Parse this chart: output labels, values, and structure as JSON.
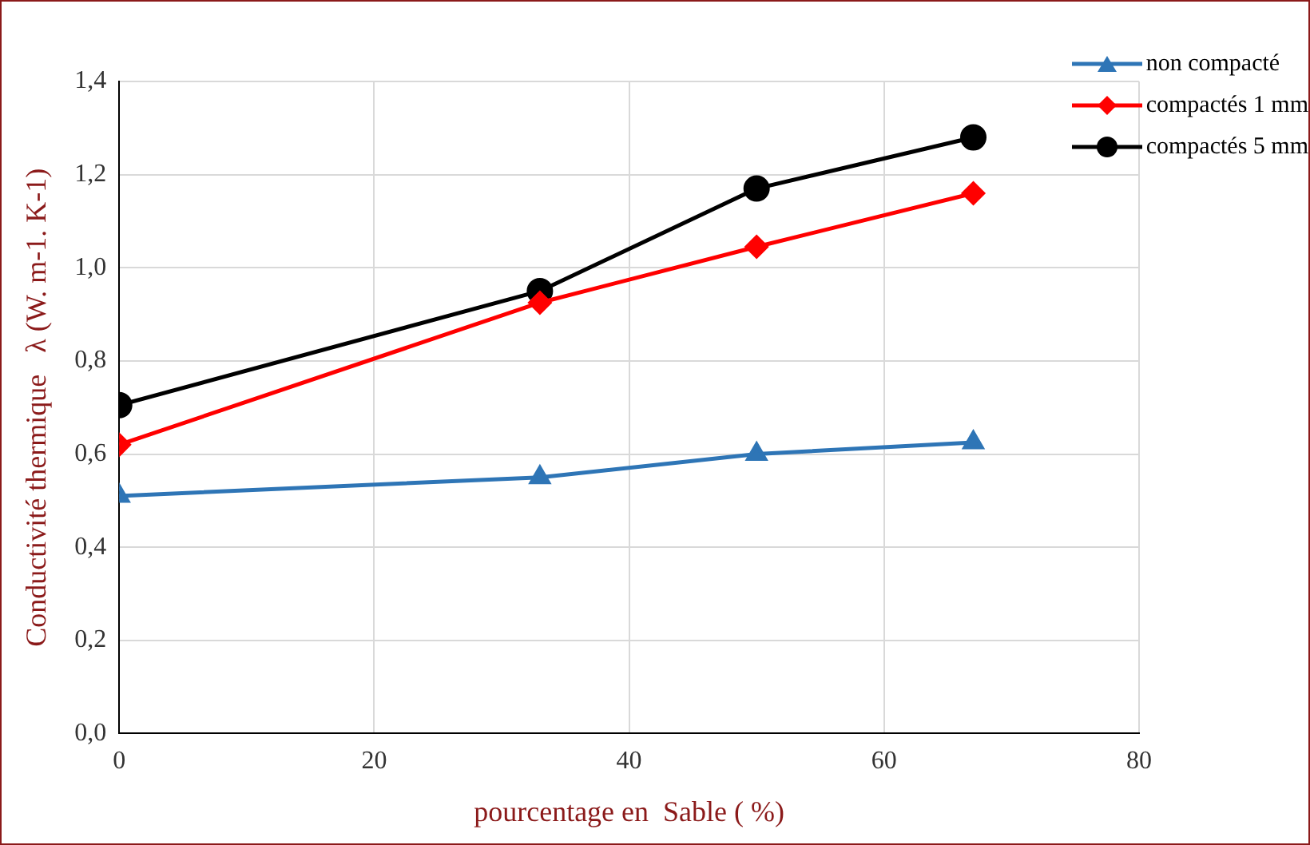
{
  "chart_data": {
    "type": "line",
    "xlabel": "pourcentage en  Sable ( %)",
    "ylabel": "Conductivité thermique   λ (W. m-1. K-1)",
    "x": [
      0,
      33,
      50,
      67
    ],
    "series": [
      {
        "name": "non compacté",
        "color": "#2e75b6",
        "marker": "triangle",
        "values": [
          0.51,
          0.55,
          0.6,
          0.625
        ]
      },
      {
        "name": "compactés 1 mm",
        "color": "#ff0000",
        "marker": "diamond",
        "values": [
          0.62,
          0.925,
          1.045,
          1.16
        ]
      },
      {
        "name": "compactés 5 mm",
        "color": "#000000",
        "marker": "circle",
        "values": [
          0.705,
          0.95,
          1.17,
          1.28
        ]
      }
    ],
    "xlim": [
      0,
      80
    ],
    "xticks": [
      0,
      20,
      40,
      60,
      80
    ],
    "ylim": [
      0,
      1.4
    ],
    "yticks": [
      {
        "value": 0,
        "label": "0,0"
      },
      {
        "value": 0.2,
        "label": "0,2"
      },
      {
        "value": 0.4,
        "label": "0,4"
      },
      {
        "value": 0.6,
        "label": "0,6"
      },
      {
        "value": 0.8,
        "label": "0,8"
      },
      {
        "value": 1,
        "label": "1,0"
      },
      {
        "value": 1.2,
        "label": "1,2"
      },
      {
        "value": 1.4,
        "label": "1,4"
      }
    ],
    "grid": true,
    "legend": "top right",
    "line_style": "solid"
  }
}
